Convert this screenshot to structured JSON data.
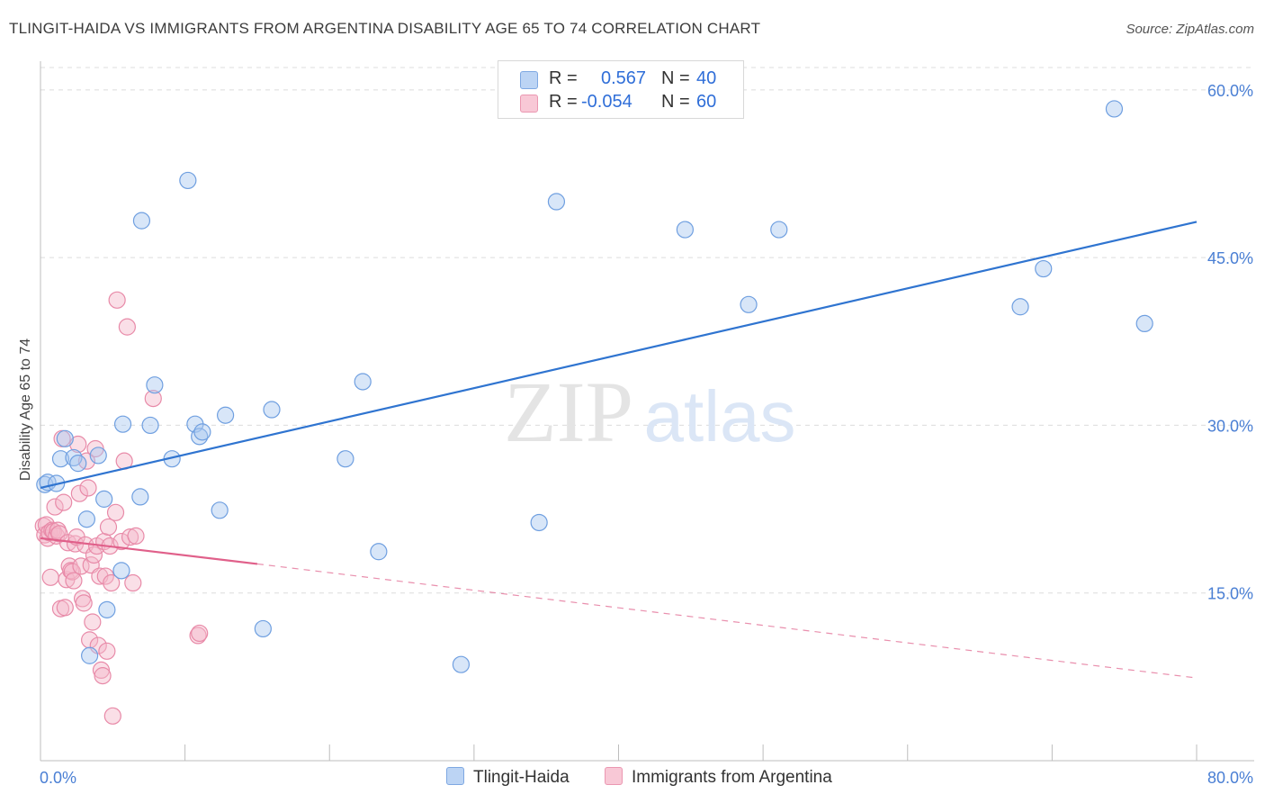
{
  "title": "TLINGIT-HAIDA VS IMMIGRANTS FROM ARGENTINA DISABILITY AGE 65 TO 74 CORRELATION CHART",
  "source": "Source: ZipAtlas.com",
  "watermark": {
    "zip": "ZIP",
    "atlas": "atlas"
  },
  "legend": {
    "r_label": "R =",
    "n_label": "N =",
    "series1": {
      "r": "0.567",
      "n": "40"
    },
    "series2": {
      "r": "-0.054",
      "n": "60"
    }
  },
  "colors": {
    "blue_fill": "#a9c8f0",
    "blue_stroke": "#6f9fe0",
    "blue_line": "#2f74d0",
    "pink_fill": "#f5b8ca",
    "pink_stroke": "#e88aa8",
    "pink_line": "#e0608a",
    "grid": "#dcdcdc",
    "tick_text": "#4a7fd4"
  },
  "chart_data": {
    "type": "scatter",
    "xlabel": "",
    "ylabel": "Disability Age 65 to 74",
    "xlim": [
      0,
      80
    ],
    "ylim": [
      0,
      62
    ],
    "x_tick_labels": [
      "0.0%",
      "80.0%"
    ],
    "y_ticks": [
      15,
      30,
      45,
      60
    ],
    "y_tick_labels": [
      "15.0%",
      "30.0%",
      "45.0%",
      "60.0%"
    ],
    "series": [
      {
        "name": "Tlingit-Haida",
        "color": "blue",
        "points": [
          [
            0.3,
            24.7
          ],
          [
            0.5,
            24.9
          ],
          [
            1.1,
            24.8
          ],
          [
            1.4,
            27.0
          ],
          [
            1.7,
            28.8
          ],
          [
            2.3,
            27.1
          ],
          [
            2.6,
            26.6
          ],
          [
            3.2,
            21.6
          ],
          [
            3.4,
            9.4
          ],
          [
            4.0,
            27.3
          ],
          [
            4.4,
            23.4
          ],
          [
            4.6,
            13.5
          ],
          [
            5.6,
            17.0
          ],
          [
            5.7,
            30.1
          ],
          [
            6.9,
            23.6
          ],
          [
            7.0,
            48.3
          ],
          [
            7.6,
            30.0
          ],
          [
            7.9,
            33.6
          ],
          [
            9.1,
            27.0
          ],
          [
            10.2,
            51.9
          ],
          [
            10.7,
            30.1
          ],
          [
            11.0,
            29.0
          ],
          [
            11.2,
            29.4
          ],
          [
            12.4,
            22.4
          ],
          [
            12.8,
            30.9
          ],
          [
            15.4,
            11.8
          ],
          [
            16.0,
            31.4
          ],
          [
            21.1,
            27.0
          ],
          [
            22.3,
            33.9
          ],
          [
            23.4,
            18.7
          ],
          [
            29.1,
            8.6
          ],
          [
            34.5,
            21.3
          ],
          [
            35.7,
            50.0
          ],
          [
            44.6,
            47.5
          ],
          [
            49.0,
            40.8
          ],
          [
            51.1,
            47.5
          ],
          [
            67.8,
            40.6
          ],
          [
            69.4,
            44.0
          ],
          [
            74.3,
            58.3
          ],
          [
            76.4,
            39.1
          ]
        ],
        "trend": {
          "x": [
            0,
            80
          ],
          "y": [
            24.4,
            48.2
          ],
          "style": "solid"
        }
      },
      {
        "name": "Immigrants from Argentina",
        "color": "pink",
        "points": [
          [
            0.2,
            21.0
          ],
          [
            0.3,
            20.2
          ],
          [
            0.4,
            21.1
          ],
          [
            0.5,
            19.9
          ],
          [
            0.6,
            20.4
          ],
          [
            0.7,
            16.4
          ],
          [
            0.8,
            20.6
          ],
          [
            0.9,
            20.5
          ],
          [
            1.0,
            22.7
          ],
          [
            1.1,
            20.1
          ],
          [
            1.2,
            20.6
          ],
          [
            1.3,
            20.3
          ],
          [
            1.4,
            13.6
          ],
          [
            1.5,
            28.8
          ],
          [
            1.6,
            23.1
          ],
          [
            1.7,
            13.7
          ],
          [
            1.8,
            16.2
          ],
          [
            1.9,
            19.5
          ],
          [
            2.0,
            17.4
          ],
          [
            2.1,
            17.0
          ],
          [
            2.2,
            16.9
          ],
          [
            2.3,
            16.1
          ],
          [
            2.4,
            19.4
          ],
          [
            2.5,
            20.0
          ],
          [
            2.6,
            28.3
          ],
          [
            2.7,
            23.9
          ],
          [
            2.8,
            17.4
          ],
          [
            2.9,
            14.5
          ],
          [
            3.0,
            14.1
          ],
          [
            3.1,
            19.3
          ],
          [
            3.2,
            26.8
          ],
          [
            3.3,
            24.4
          ],
          [
            3.4,
            10.8
          ],
          [
            3.5,
            17.5
          ],
          [
            3.6,
            12.4
          ],
          [
            3.7,
            18.4
          ],
          [
            3.8,
            27.9
          ],
          [
            3.9,
            19.2
          ],
          [
            4.0,
            10.3
          ],
          [
            4.1,
            16.5
          ],
          [
            4.2,
            8.1
          ],
          [
            4.3,
            7.6
          ],
          [
            4.4,
            19.6
          ],
          [
            4.5,
            16.5
          ],
          [
            4.6,
            9.8
          ],
          [
            4.7,
            20.9
          ],
          [
            4.8,
            19.2
          ],
          [
            4.9,
            15.9
          ],
          [
            5.0,
            4.0
          ],
          [
            5.2,
            22.2
          ],
          [
            5.3,
            41.2
          ],
          [
            5.6,
            19.6
          ],
          [
            5.8,
            26.8
          ],
          [
            6.0,
            38.8
          ],
          [
            6.2,
            20.0
          ],
          [
            6.4,
            15.9
          ],
          [
            6.6,
            20.1
          ],
          [
            7.8,
            32.4
          ],
          [
            10.9,
            11.2
          ],
          [
            11.0,
            11.4
          ]
        ],
        "trend": {
          "x": [
            0,
            15
          ],
          "y": [
            19.9,
            17.6
          ],
          "style": "solid",
          "extended": {
            "x": [
              15,
              80
            ],
            "y": [
              17.6,
              7.4
            ],
            "style": "dashed"
          }
        }
      }
    ],
    "bottom_legend": [
      "Tlingit-Haida",
      "Immigrants from Argentina"
    ]
  }
}
